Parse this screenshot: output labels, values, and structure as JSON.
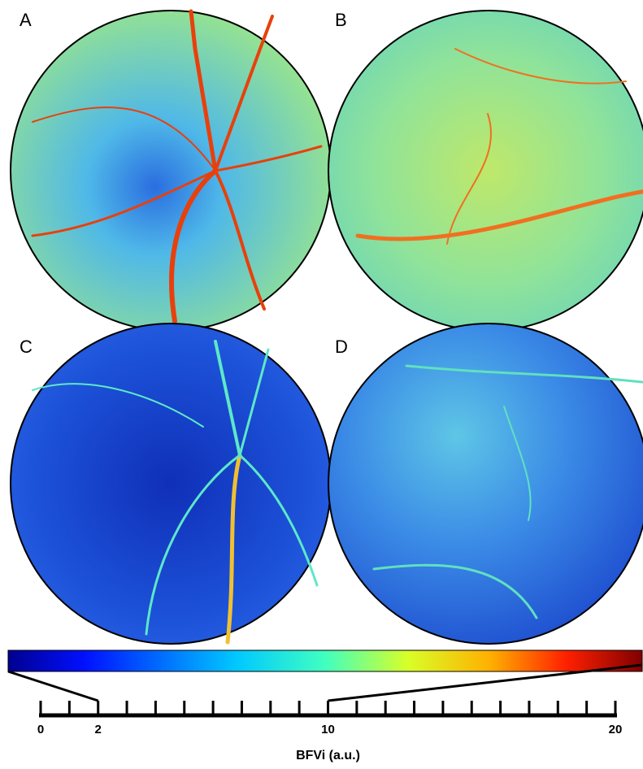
{
  "chart_data": {
    "type": "colorbar",
    "panels": [
      "A",
      "B",
      "C",
      "D"
    ],
    "clim": [
      2,
      10
    ],
    "xlim": [
      0,
      20
    ],
    "xticks": [
      0,
      2,
      10,
      20
    ],
    "minor_xticks": [
      0,
      1,
      2,
      3,
      4,
      5,
      6,
      7,
      8,
      9,
      10,
      11,
      12,
      13,
      14,
      15,
      16,
      17,
      18,
      19,
      20
    ],
    "xlabel": "BFVi (a.u.)"
  }
}
